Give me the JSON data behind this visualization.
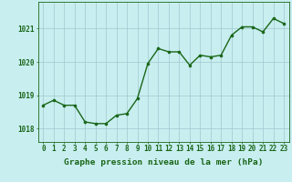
{
  "x": [
    0,
    1,
    2,
    3,
    4,
    5,
    6,
    7,
    8,
    9,
    10,
    11,
    12,
    13,
    14,
    15,
    16,
    17,
    18,
    19,
    20,
    21,
    22,
    23
  ],
  "y": [
    1018.7,
    1018.85,
    1018.7,
    1018.7,
    1018.2,
    1018.15,
    1018.15,
    1018.4,
    1018.45,
    1018.9,
    1019.95,
    1020.4,
    1020.3,
    1020.3,
    1019.9,
    1020.2,
    1020.15,
    1020.2,
    1020.8,
    1021.05,
    1021.05,
    1020.9,
    1021.3,
    1021.15
  ],
  "line_color": "#1a6618",
  "marker_color": "#1a6618",
  "bg_color": "#c8eef0",
  "grid_color": "#a0c8d0",
  "ylabel_ticks": [
    1018,
    1019,
    1020,
    1021
  ],
  "xlabel_label": "Graphe pression niveau de la mer (hPa)",
  "xlim": [
    -0.5,
    23.5
  ],
  "ylim": [
    1017.6,
    1021.8
  ],
  "tick_label_color": "#1a6618",
  "xlabel_color": "#1a6618",
  "font_size_tick": 5.5,
  "font_size_xlabel": 6.8,
  "marker_size": 2.2,
  "line_width": 1.0
}
